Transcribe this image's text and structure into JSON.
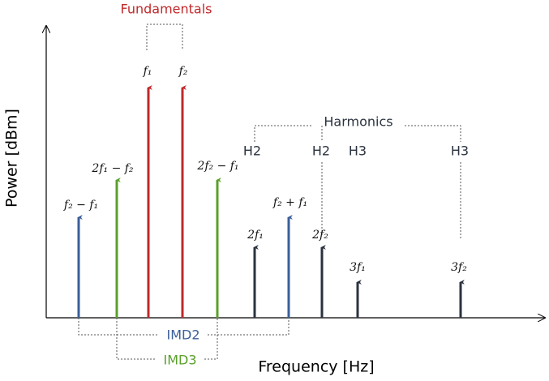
{
  "title": "Fundamentals",
  "axes": {
    "x_label": "Frequency [Hz]",
    "y_label": "Power [dBm]"
  },
  "groups": {
    "harmonics": "Harmonics",
    "imd2": "IMD2",
    "imd3": "IMD3"
  },
  "tones": [
    {
      "label": "f₂ − f₁"
    },
    {
      "label": "2f₁ − f₂"
    },
    {
      "label": "f₁"
    },
    {
      "label": "f₂"
    },
    {
      "label": "2f₂ − f₁"
    },
    {
      "label": "2f₁"
    },
    {
      "label": "f₂ + f₁"
    },
    {
      "label": "2f₂"
    },
    {
      "label": "3f₁"
    },
    {
      "label": "3f₂"
    }
  ],
  "harmonic_tags": [
    "H2",
    "H2",
    "H3",
    "H3"
  ]
}
